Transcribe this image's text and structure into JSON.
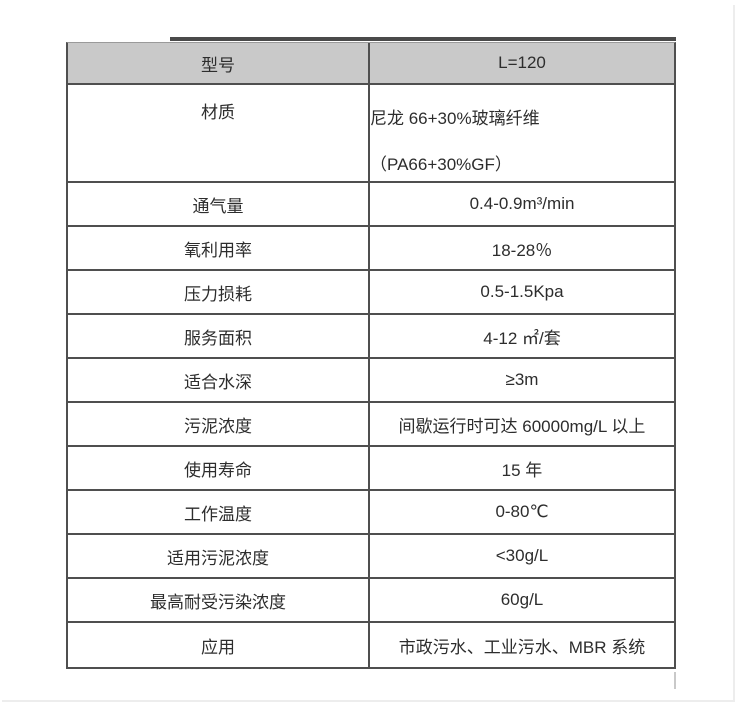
{
  "colors": {
    "header_bg": "#c9c9c9",
    "border": "#4f4f4f",
    "text": "#2d2d2d",
    "artifact_line": "#4a4a4a"
  },
  "table": {
    "header": {
      "label": "型号",
      "value": "L=120"
    },
    "rows": [
      {
        "label": "材质",
        "value": "尼龙 66+30%玻璃纤维",
        "value2": "（PA66+30%GF）"
      },
      {
        "label": "通气量",
        "value": "0.4-0.9m³/min"
      },
      {
        "label": "氧利用率",
        "value": "18-28％"
      },
      {
        "label": "压力损耗",
        "value": "0.5-1.5Kpa"
      },
      {
        "label": "服务面积",
        "value": "4-12 ㎡/套"
      },
      {
        "label": "适合水深",
        "value": "≥3m"
      },
      {
        "label": "污泥浓度",
        "value": "间歇运行时可达 60000mg/L 以上"
      },
      {
        "label": "使用寿命",
        "value": "15 年"
      },
      {
        "label": "工作温度",
        "value": "0-80℃"
      },
      {
        "label": "适用污泥浓度",
        "value": "<30g/L"
      },
      {
        "label": "最高耐受污染浓度",
        "value": "60g/L"
      },
      {
        "label": "应用",
        "value": "市政污水、工业污水、MBR 系统"
      }
    ]
  }
}
